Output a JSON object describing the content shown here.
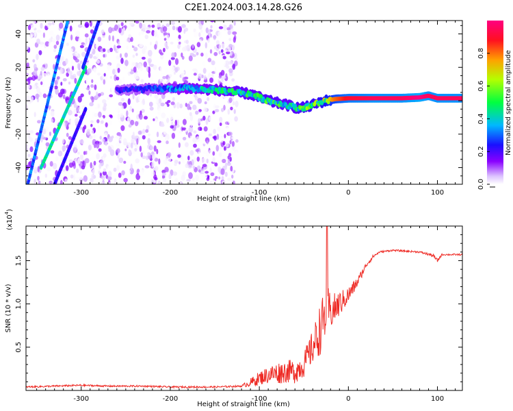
{
  "title": "C2E1.2024.003.14.28.G26",
  "chart_data": [
    {
      "type": "heatmap",
      "xlabel": "Height of straight line (km)",
      "ylabel": "Frequency (Hz)",
      "xlim": [
        -362,
        128
      ],
      "ylim": [
        -50,
        48
      ],
      "xticks": [
        -300,
        -200,
        -100,
        0,
        100
      ],
      "xtick_labels": [
        "-300",
        "-200",
        "-100",
        "0",
        "100"
      ],
      "yticks": [
        -40,
        -20,
        0,
        20,
        40
      ],
      "ytick_labels": [
        "-40",
        "-20",
        "0",
        "20",
        "40"
      ],
      "grid": false,
      "colorbar": {
        "label": "Normalized spectral amplitude",
        "range": [
          0,
          1
        ],
        "ticks": [
          0.0,
          0.2,
          0.4,
          0.6,
          0.8
        ],
        "tick_labels": [
          "0.0",
          "0.2",
          "0.4",
          "0.6",
          "0.8"
        ],
        "colormap": [
          "#ffffff",
          "#c8a0ff",
          "#7a00ff",
          "#1010ff",
          "#00c8ff",
          "#00ff60",
          "#c8ff00",
          "#ff8000",
          "#ff0040",
          "#ff0080"
        ]
      },
      "ridge": {
        "height_km": [
          -260,
          -220,
          -180,
          -150,
          -130,
          -110,
          -90,
          -70,
          -55,
          -45,
          -35,
          -25,
          -15,
          0,
          30,
          60,
          80,
          90,
          100,
          128
        ],
        "frequency_hz": [
          6.5,
          7,
          7.5,
          6.5,
          5.5,
          4,
          0,
          -2.5,
          -4.5,
          -3.5,
          -1.5,
          0,
          1,
          1.5,
          1.5,
          1.5,
          2,
          3,
          1.5,
          1.5
        ],
        "amplitude": [
          0.25,
          0.3,
          0.4,
          0.45,
          0.5,
          0.5,
          0.55,
          0.5,
          0.55,
          0.6,
          0.6,
          0.7,
          0.8,
          0.9,
          0.95,
          0.95,
          1.0,
          0.95,
          0.95,
          0.95
        ]
      },
      "lines": [
        {
          "height_km": [
            -360,
            -315
          ],
          "frequency_hz": [
            -50,
            48
          ],
          "amplitude": 0.35
        },
        {
          "height_km": [
            -345,
            -295
          ],
          "frequency_hz": [
            -40,
            20
          ],
          "amplitude": 0.5
        },
        {
          "height_km": [
            -298,
            -280
          ],
          "frequency_hz": [
            20,
            48
          ],
          "amplitude": 0.3
        },
        {
          "height_km": [
            -330,
            -295
          ],
          "frequency_hz": [
            -50,
            -5
          ],
          "amplitude": 0.25
        }
      ]
    },
    {
      "type": "line",
      "xlabel": "Height of straight line (km)",
      "ylabel": "SNR (10 * v/v)",
      "exponent_label": "(x10",
      "exponent_power": "4",
      "exponent_close": ")",
      "xlim": [
        -362,
        128
      ],
      "ylim": [
        0,
        1.9
      ],
      "xticks": [
        -300,
        -200,
        -100,
        0,
        100
      ],
      "xtick_labels": [
        "-300",
        "-200",
        "-100",
        "0",
        "100"
      ],
      "yticks": [
        0.5,
        1.0,
        1.5
      ],
      "ytick_labels": [
        "0.5",
        "1.0",
        "1.5"
      ],
      "grid": false,
      "series": [
        {
          "color": "#ee2a24",
          "x": [
            -362,
            -330,
            -300,
            -270,
            -230,
            -200,
            -150,
            -120,
            -110,
            -100,
            -90,
            -80,
            -70,
            -60,
            -50,
            -40,
            -32,
            -25,
            -22,
            -20,
            -15,
            -10,
            -5,
            0,
            10,
            20,
            28,
            35,
            50,
            80,
            95,
            100,
            105,
            128
          ],
          "y": [
            0.04,
            0.05,
            0.06,
            0.05,
            0.05,
            0.04,
            0.04,
            0.05,
            0.09,
            0.14,
            0.18,
            0.2,
            0.22,
            0.22,
            0.3,
            0.5,
            0.7,
            0.9,
            0.95,
            0.9,
            0.95,
            1.0,
            1.05,
            1.1,
            1.25,
            1.45,
            1.55,
            1.6,
            1.62,
            1.6,
            1.56,
            1.5,
            1.57,
            1.57
          ],
          "noise": [
            0.01,
            0.01,
            0.01,
            0.01,
            0.01,
            0.01,
            0.01,
            0.01,
            0.05,
            0.08,
            0.1,
            0.13,
            0.13,
            0.14,
            0.15,
            0.2,
            0.3,
            0.3,
            0.25,
            0.2,
            0.18,
            0.15,
            0.12,
            0.1,
            0.06,
            0.03,
            0.02,
            0.01,
            0.01,
            0.01,
            0.02,
            0.02,
            0.01,
            0.01
          ],
          "spike": {
            "x": -24,
            "y": 1.9
          }
        }
      ]
    }
  ]
}
